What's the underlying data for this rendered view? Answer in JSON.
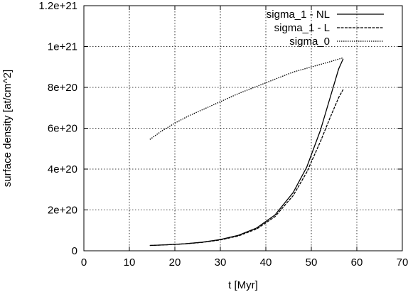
{
  "chart_data": {
    "type": "line",
    "xlabel": "t [Myr]",
    "ylabel": "surface density [at/cm^2]",
    "xlim": [
      0,
      70
    ],
    "ylim": [
      0,
      1.2e+21
    ],
    "x_ticks": [
      {
        "value": 0,
        "label": "0"
      },
      {
        "value": 10,
        "label": "10"
      },
      {
        "value": 20,
        "label": "20"
      },
      {
        "value": 30,
        "label": "30"
      },
      {
        "value": 40,
        "label": "40"
      },
      {
        "value": 50,
        "label": "50"
      },
      {
        "value": 60,
        "label": "60"
      },
      {
        "value": 70,
        "label": "70"
      }
    ],
    "y_ticks": [
      {
        "value": 0,
        "label": "0"
      },
      {
        "value": 2e+20,
        "label": "2e+20"
      },
      {
        "value": 4e+20,
        "label": "4e+20"
      },
      {
        "value": 6e+20,
        "label": "6e+20"
      },
      {
        "value": 8e+20,
        "label": "8e+20"
      },
      {
        "value": 1e+21,
        "label": "1e+21"
      },
      {
        "value": 1.2e+21,
        "label": "1.2e+21"
      }
    ],
    "grid": true,
    "legend_position": "top-right",
    "series": [
      {
        "name": "sigma_1 - NL",
        "style": "solid",
        "x": [
          14.5,
          18,
          22,
          26,
          30,
          34,
          38,
          42,
          46,
          49,
          52,
          54,
          56,
          57
        ],
        "y": [
          2.6e+19,
          2.9e+19,
          3.4e+19,
          4.2e+19,
          5.5e+19,
          7.6e+19,
          1.12e+20,
          1.75e+20,
          2.85e+20,
          4.1e+20,
          5.9e+20,
          7.4e+20,
          8.9e+20,
          9.4e+20
        ]
      },
      {
        "name": "sigma_1 - L",
        "style": "dashed",
        "x": [
          14.5,
          18,
          22,
          26,
          30,
          34,
          38,
          42,
          46,
          49,
          52,
          54,
          56,
          57
        ],
        "y": [
          2.6e+19,
          2.9e+19,
          3.4e+19,
          4.1e+19,
          5.3e+19,
          7.3e+19,
          1.07e+20,
          1.67e+20,
          2.7e+20,
          3.85e+20,
          5.35e+20,
          6.45e+20,
          7.5e+20,
          7.9e+20
        ]
      },
      {
        "name": "sigma_0",
        "style": "dotted",
        "x": [
          14.5,
          17,
          20,
          23,
          26,
          30,
          34,
          38,
          42,
          46,
          50,
          54,
          57
        ],
        "y": [
          5.45e+20,
          5.85e+20,
          6.25e+20,
          6.6e+20,
          6.9e+20,
          7.3e+20,
          7.7e+20,
          8.05e+20,
          8.4e+20,
          8.75e+20,
          9e+20,
          9.25e+20,
          9.45e+20
        ]
      }
    ]
  }
}
